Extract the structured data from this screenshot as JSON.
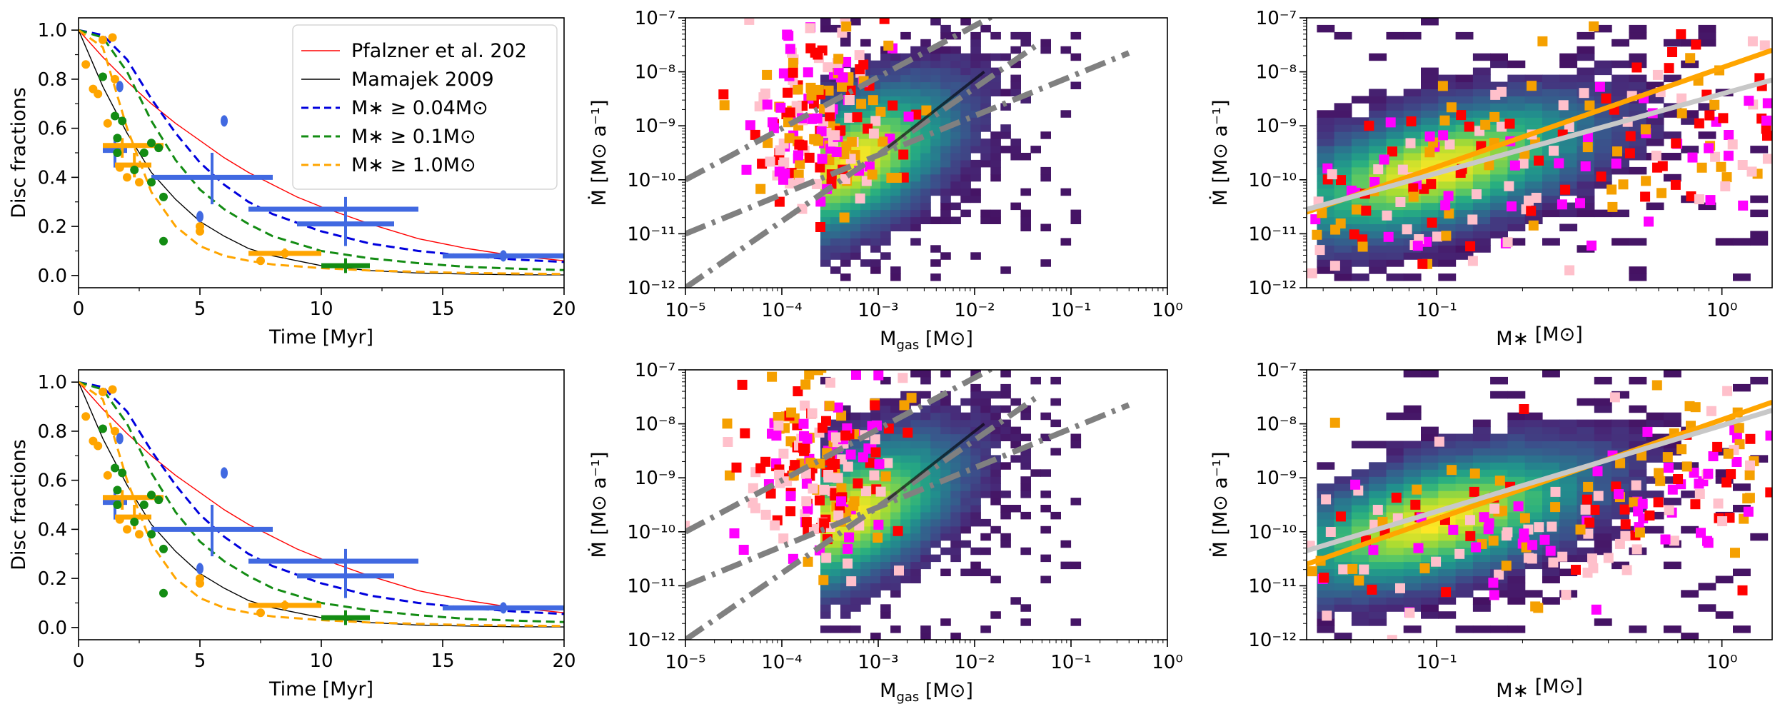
{
  "figure": {
    "rows": 2,
    "cols": 3
  },
  "colors": {
    "pfalzner": "#ff0000",
    "mamajek": "#000000",
    "m004": "#0000dd",
    "m01": "#138c13",
    "m10": "#ffa500",
    "obs_blue": "#4169e1",
    "obs_green": "#138c13",
    "obs_orange": "#ffa500",
    "gray_line": "#808080",
    "light_gray": "#c8c8c8",
    "sq_red": "#ff0000",
    "sq_orange": "#f5a000",
    "sq_magenta": "#ff00ff",
    "sq_pink": "#ffc0cb"
  },
  "chart_data": [
    {
      "id": "disc-top",
      "type": "line",
      "xlabel": "Time [Myr]",
      "ylabel": "Disc fractions",
      "xlim": [
        0,
        20
      ],
      "ylim": [
        -0.05,
        1.05
      ],
      "xticks": [
        0,
        5,
        10,
        15,
        20
      ],
      "yticks": [
        0.0,
        0.2,
        0.4,
        0.6,
        0.8,
        1.0
      ],
      "xticklabels": [
        "0",
        "5",
        "10",
        "15",
        "20"
      ],
      "yticklabels": [
        "0.0",
        "0.2",
        "0.4",
        "0.6",
        "0.8",
        "1.0"
      ],
      "legend": {
        "position": "top-right",
        "entries": [
          {
            "label": "Pfalzner et al. 202",
            "color": "#ff0000",
            "style": "solid"
          },
          {
            "label": "Mamajek 2009",
            "color": "#000000",
            "style": "solid"
          },
          {
            "label": "M∗ ≥ 0.04M⊙",
            "color": "#0000dd",
            "style": "dashed"
          },
          {
            "label": "M∗ ≥ 0.1M⊙",
            "color": "#138c13",
            "style": "dashed"
          },
          {
            "label": "M∗ ≥ 1.0M⊙",
            "color": "#ffa500",
            "style": "dashed"
          }
        ]
      },
      "series": [
        {
          "name": "Pfalzner",
          "color": "#ff0000",
          "width": 1.4,
          "dash": "",
          "x": [
            0,
            1,
            2,
            3,
            4,
            5,
            6,
            7,
            8,
            9,
            10,
            12,
            14,
            16,
            18,
            20
          ],
          "y": [
            1.0,
            0.89,
            0.79,
            0.7,
            0.62,
            0.55,
            0.48,
            0.42,
            0.37,
            0.32,
            0.28,
            0.21,
            0.15,
            0.11,
            0.08,
            0.06
          ]
        },
        {
          "name": "Mamajek",
          "color": "#000000",
          "width": 1.4,
          "dash": "",
          "x": [
            0,
            1,
            2,
            3,
            4,
            5,
            6,
            7,
            8,
            10,
            12,
            14,
            16,
            18,
            20
          ],
          "y": [
            1.0,
            0.77,
            0.58,
            0.42,
            0.31,
            0.22,
            0.16,
            0.11,
            0.08,
            0.04,
            0.02,
            0.01,
            0.006,
            0.003,
            0.002
          ]
        },
        {
          "name": "M>=0.04",
          "color": "#0000dd",
          "width": 3,
          "dash": "12,7",
          "x": [
            0,
            1,
            2,
            3,
            4,
            5,
            6,
            7,
            8,
            10,
            12,
            14,
            16,
            18,
            20
          ],
          "y": [
            1.0,
            0.98,
            0.88,
            0.72,
            0.58,
            0.46,
            0.37,
            0.3,
            0.25,
            0.18,
            0.13,
            0.1,
            0.08,
            0.065,
            0.055
          ]
        },
        {
          "name": "M>=0.1",
          "color": "#138c13",
          "width": 3,
          "dash": "12,7",
          "x": [
            0,
            1,
            2,
            3,
            4,
            5,
            6,
            7,
            8,
            10,
            12,
            14,
            16,
            18,
            20
          ],
          "y": [
            1.0,
            0.97,
            0.83,
            0.63,
            0.47,
            0.35,
            0.27,
            0.21,
            0.16,
            0.1,
            0.07,
            0.05,
            0.035,
            0.028,
            0.022
          ]
        },
        {
          "name": "M>=1.0",
          "color": "#ffa500",
          "width": 3,
          "dash": "12,7",
          "x": [
            0,
            1,
            2,
            3,
            4,
            5,
            6,
            7,
            8,
            10,
            12,
            14,
            16,
            18,
            20
          ],
          "y": [
            1.0,
            0.93,
            0.6,
            0.34,
            0.2,
            0.12,
            0.08,
            0.06,
            0.045,
            0.03,
            0.02,
            0.015,
            0.01,
            0.008,
            0.006
          ]
        }
      ],
      "points": [
        {
          "c": "orange",
          "x": 0.3,
          "y": 0.86
        },
        {
          "c": "orange",
          "x": 0.6,
          "y": 0.76
        },
        {
          "c": "orange",
          "x": 0.8,
          "y": 0.74
        },
        {
          "c": "orange",
          "x": 1.0,
          "y": 0.96
        },
        {
          "c": "orange",
          "x": 1.4,
          "y": 0.97
        },
        {
          "c": "orange",
          "x": 1.5,
          "y": 0.8
        },
        {
          "c": "orange",
          "x": 1.2,
          "y": 0.62
        },
        {
          "c": "orange",
          "x": 1.7,
          "y": 0.44
        },
        {
          "c": "orange",
          "x": 2.0,
          "y": 0.4
        },
        {
          "c": "orange",
          "x": 2.5,
          "y": 0.38
        },
        {
          "c": "orange",
          "x": 5.0,
          "y": 0.18
        },
        {
          "c": "orange",
          "x": 5.0,
          "y": 0.2
        },
        {
          "c": "orange",
          "x": 7.5,
          "y": 0.06
        },
        {
          "c": "orange",
          "x": 8.5,
          "y": 0.09
        },
        {
          "c": "green",
          "x": 1.0,
          "y": 0.81
        },
        {
          "c": "green",
          "x": 1.5,
          "y": 0.65
        },
        {
          "c": "green",
          "x": 1.8,
          "y": 0.63
        },
        {
          "c": "green",
          "x": 1.6,
          "y": 0.56
        },
        {
          "c": "green",
          "x": 1.6,
          "y": 0.5
        },
        {
          "c": "green",
          "x": 2.3,
          "y": 0.43
        },
        {
          "c": "green",
          "x": 2.7,
          "y": 0.5
        },
        {
          "c": "green",
          "x": 3.0,
          "y": 0.54
        },
        {
          "c": "green",
          "x": 3.3,
          "y": 0.52
        },
        {
          "c": "green",
          "x": 3.0,
          "y": 0.38
        },
        {
          "c": "green",
          "x": 3.5,
          "y": 0.32
        },
        {
          "c": "green",
          "x": 3.5,
          "y": 0.14
        },
        {
          "c": "blue",
          "x": 1.7,
          "y": 0.77
        },
        {
          "c": "blue",
          "x": 6.0,
          "y": 0.63
        },
        {
          "c": "blue",
          "x": 5.0,
          "y": 0.24
        },
        {
          "c": "blue",
          "x": 17.5,
          "y": 0.08
        }
      ],
      "errorbars": [
        {
          "c": "blue",
          "x": 1.5,
          "y": 0.51,
          "xl": 1.0,
          "xh": 2.0,
          "yl": 0.44,
          "yh": 0.56
        },
        {
          "c": "blue",
          "x": 5.5,
          "y": 0.4,
          "xl": 3.0,
          "xh": 8.0,
          "yl": 0.29,
          "yh": 0.5
        },
        {
          "c": "blue",
          "x": 11.0,
          "y": 0.27,
          "xl": 7.0,
          "xh": 14.0,
          "yl": 0.2,
          "yh": 0.32
        },
        {
          "c": "blue",
          "x": 11.0,
          "y": 0.21,
          "xl": 9.0,
          "xh": 13.0,
          "yl": 0.12,
          "yh": 0.3
        },
        {
          "c": "blue",
          "x": 17.5,
          "y": 0.08,
          "xl": 15.0,
          "xh": 20.0,
          "yl": 0.06,
          "yh": 0.1
        },
        {
          "c": "orange",
          "x": 1.8,
          "y": 0.53,
          "xl": 1.0,
          "xh": 3.5,
          "yl": 0.48,
          "yh": 0.56
        },
        {
          "c": "orange",
          "x": 2.3,
          "y": 0.45,
          "xl": 1.5,
          "xh": 3.0,
          "yl": 0.4,
          "yh": 0.5
        },
        {
          "c": "orange",
          "x": 8.5,
          "y": 0.09,
          "xl": 7.0,
          "xh": 10.0,
          "yl": 0.07,
          "yh": 0.11
        },
        {
          "c": "green",
          "x": 11.0,
          "y": 0.04,
          "xl": 10.0,
          "xh": 12.0,
          "yl": 0.01,
          "yh": 0.07
        }
      ]
    },
    {
      "id": "mgas-top",
      "type": "heatmap-scatter",
      "scale": "log-log",
      "xlabel_main": "M",
      "xlabel_sub": "gas",
      "xlabel_unit": " [M⊙]",
      "ylabel": "Ṁ [M⊙ a⁻¹]",
      "xlim": [
        1e-05,
        1
      ],
      "ylim": [
        1e-12,
        1e-07
      ],
      "xticklabels": [
        "10⁻⁵",
        "10⁻⁴",
        "10⁻³",
        "10⁻²",
        "10⁻¹",
        "10⁰"
      ],
      "yticklabels": [
        "10⁻¹²",
        "10⁻¹¹",
        "10⁻¹⁰",
        "10⁻⁹",
        "10⁻⁸",
        "10⁻⁷"
      ],
      "heat": {
        "x0": -3.3,
        "y0": -9.7,
        "sx": 0.65,
        "sy": 0.85,
        "rho": 0.55,
        "xmin": -3.6,
        "xmax": -0.9,
        "ymin": -12,
        "ymax": -7,
        "seed": 11
      },
      "lines": [
        {
          "style": "dashdot",
          "color": "#808080",
          "x": [
            -5,
            -0.9
          ],
          "y": [
            -10.0,
            -6.1
          ]
        },
        {
          "style": "dashdot",
          "color": "#808080",
          "x": [
            -5,
            -0.4
          ],
          "y": [
            -11.0,
            -7.65
          ]
        },
        {
          "style": "dashdot",
          "color": "#808080",
          "x": [
            -5,
            -1.35
          ],
          "y": [
            -12.0,
            -7.5
          ]
        },
        {
          "style": "solid",
          "color": "#000000",
          "x": [
            -2.9,
            -1.9
          ],
          "y": [
            -9.4,
            -8.0
          ]
        }
      ],
      "scatter": {
        "seed": 21,
        "xc": -3.9,
        "xs": 0.4,
        "yc": -8.8,
        "ys": 0.9
      }
    },
    {
      "id": "mstar-top",
      "type": "heatmap-scatter",
      "scale": "log-log",
      "xlabel_main": "M∗",
      "xlabel_sub": "",
      "xlabel_unit": " [M⊙]",
      "ylabel": "Ṁ [M⊙ a⁻¹]",
      "xlim": [
        0.035,
        1.5
      ],
      "ylim": [
        1e-12,
        1e-07
      ],
      "xticks": [
        0.1,
        1.0
      ],
      "xticklabels": [
        "10⁻¹",
        "10⁰"
      ],
      "yticklabels": [
        "10⁻¹²",
        "10⁻¹¹",
        "10⁻¹⁰",
        "10⁻⁹",
        "10⁻⁸",
        "10⁻⁷"
      ],
      "heat": {
        "x0": -1.0,
        "y0": -9.8,
        "sx": 0.32,
        "sy": 0.75,
        "rho": 0.55,
        "xmin": -1.42,
        "xmax": 0.16,
        "ymin": -12,
        "ymax": -7,
        "seed": 31
      },
      "lines": [
        {
          "style": "solid",
          "color": "#ffa500",
          "x": [
            -1.456,
            0.176
          ],
          "y": [
            -10.6,
            -7.6
          ]
        },
        {
          "style": "solid",
          "color": "#c8c8c8",
          "x": [
            -1.456,
            0.176
          ],
          "y": [
            -10.55,
            -8.15
          ]
        }
      ],
      "scatter": {
        "seed": 41,
        "xc": -0.6,
        "xs": 0.35,
        "yc": -8.9,
        "ys": 0.9
      }
    },
    {
      "id": "disc-bottom",
      "type": "line",
      "copy_of": "disc-top",
      "xlabel": "Time [Myr]",
      "ylabel": "Disc fractions",
      "xticklabels": [
        "0",
        "5",
        "10",
        "15",
        "20"
      ],
      "yticklabels": [
        "0.0",
        "0.2",
        "0.4",
        "0.6",
        "0.8",
        "1.0"
      ]
    },
    {
      "id": "mgas-bottom",
      "type": "heatmap-scatter",
      "copy_of": "mgas-top",
      "seedShift": 5,
      "xlabel_main": "M",
      "xlabel_sub": "gas",
      "xlabel_unit": " [M⊙]",
      "ylabel": "Ṁ [M⊙ a⁻¹]",
      "xticklabels": [
        "10⁻⁵",
        "10⁻⁴",
        "10⁻³",
        "10⁻²",
        "10⁻¹",
        "10⁰"
      ],
      "yticklabels": [
        "10⁻¹²",
        "10⁻¹¹",
        "10⁻¹⁰",
        "10⁻⁹",
        "10⁻⁸",
        "10⁻⁷"
      ]
    },
    {
      "id": "mstar-bottom",
      "type": "heatmap-scatter",
      "copy_of": "mstar-top",
      "seedShift": 5,
      "xlabel_main": "M∗",
      "xlabel_sub": "",
      "xlabel_unit": " [M⊙]",
      "ylabel": "Ṁ [M⊙ a⁻¹]",
      "xticks": [
        0.1,
        1.0
      ],
      "xticklabels": [
        "10⁻¹",
        "10⁰"
      ],
      "yticklabels": [
        "10⁻¹²",
        "10⁻¹¹",
        "10⁻¹⁰",
        "10⁻⁹",
        "10⁻⁸",
        "10⁻⁷"
      ],
      "lines": [
        {
          "style": "solid",
          "color": "#ffa500",
          "x": [
            -1.456,
            0.176
          ],
          "y": [
            -10.6,
            -7.6
          ]
        },
        {
          "style": "solid",
          "color": "#c8c8c8",
          "x": [
            -1.456,
            0.176
          ],
          "y": [
            -10.35,
            -7.75
          ]
        }
      ]
    }
  ]
}
